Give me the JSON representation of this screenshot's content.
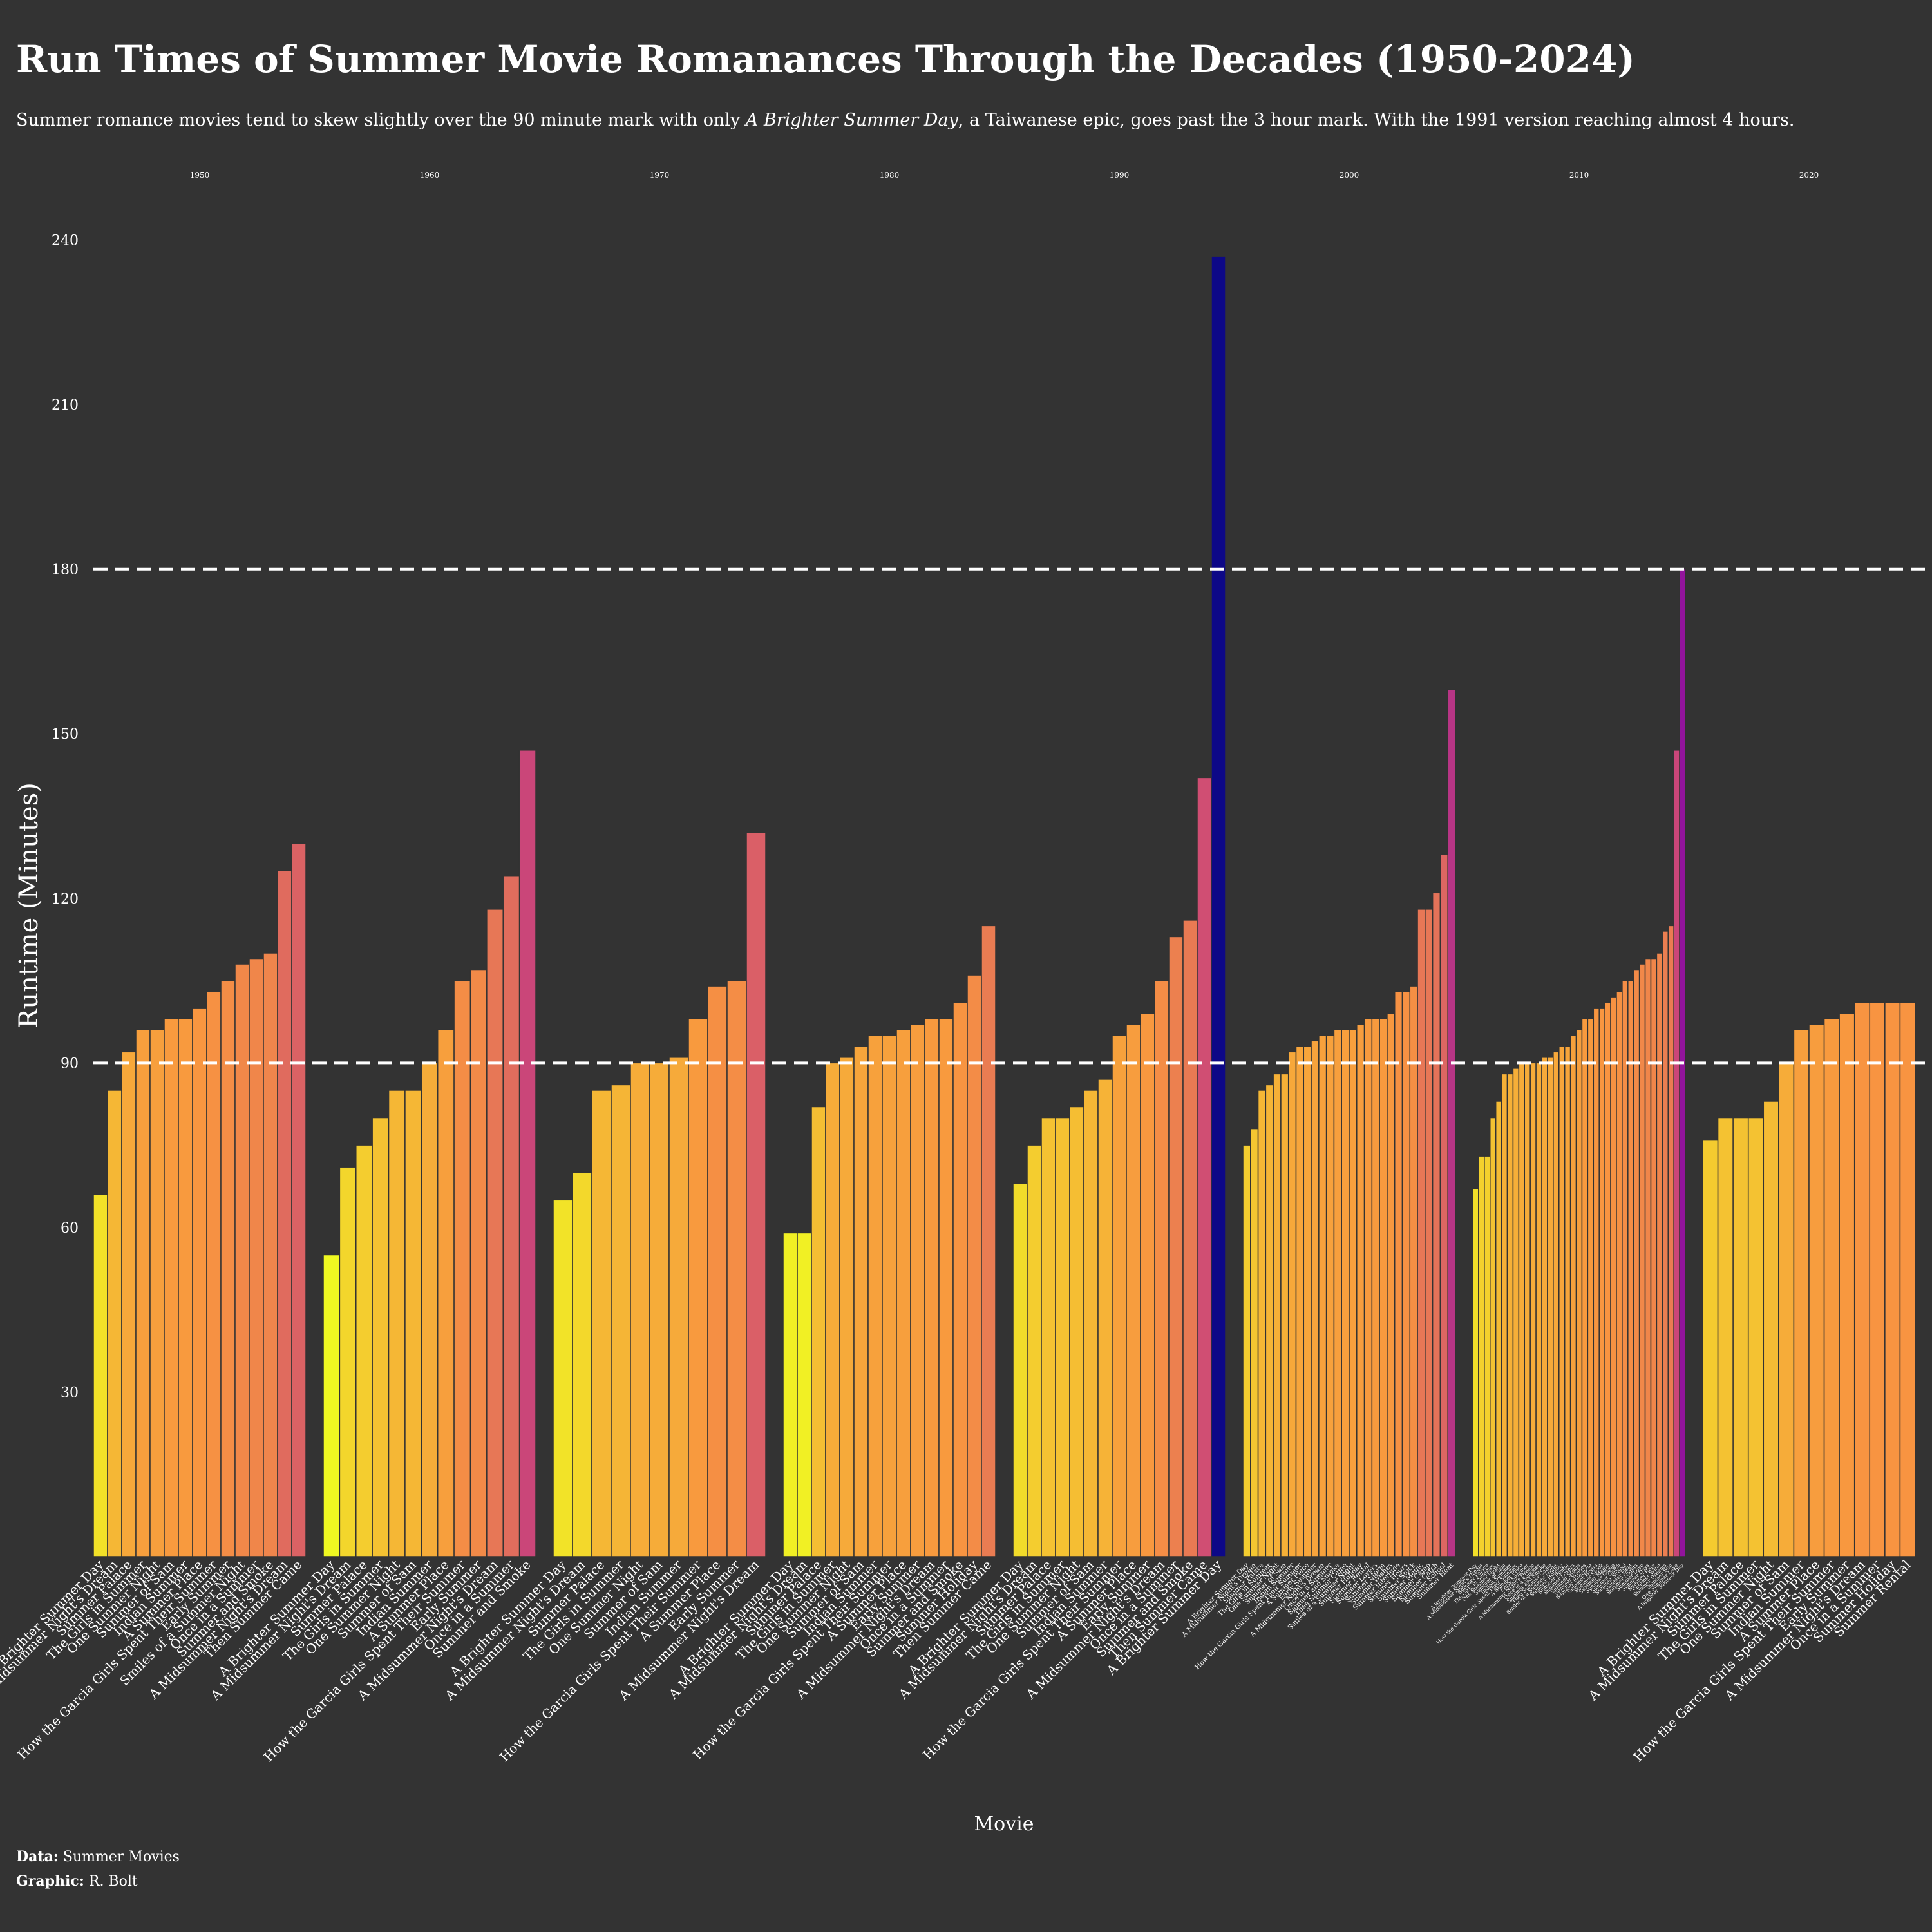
{
  "chart_data": {
    "type": "bar",
    "title": "Run Times of Summer Movie Romanances Through the Decades (1950-2024)",
    "subtitle": [
      "Summer romance movies tend to skew slightly over the 90 minute mark with only ",
      "A Brighter Summer Day",
      ", a Taiwanese epic, goes past the 3 hour mark. With the 1991 version reaching almost 4 hours."
    ],
    "y_label": "Runtime (Minutes)",
    "x_label": "Movie",
    "ylim": [
      0,
      245
    ],
    "yticks": [
      30,
      60,
      90,
      120,
      150,
      180,
      210,
      240
    ],
    "reference_lines": [
      90,
      180
    ],
    "colors": [
      "#f0f921",
      "#f89540",
      "#cc4778",
      "#7e03a8",
      "#0d0887"
    ],
    "facets": [
      {
        "title": "1950",
        "categories": [
          "A Brighter Summer Day",
          "A Midsummer Night's Dream",
          "Summer Palace",
          "The Girls in Summer",
          "One Summer Night",
          "Summer of Sam",
          "Indian Summer",
          "A Summer Place",
          "How the Garcia Girls Spent Their Summer",
          "Early Summer",
          "Smiles of a Summer Night",
          "Once in a Summer",
          "Summer and Smoke",
          "A Midsummer Night's Dream",
          "Then Summer Came"
        ],
        "values": [
          66,
          85,
          92,
          96,
          96,
          98,
          98,
          100,
          103,
          105,
          108,
          109,
          110,
          125,
          130
        ]
      },
      {
        "title": "1960",
        "categories": [
          "A Brighter Summer Day",
          "A Midsummer Night's Dream",
          "Summer Palace",
          "The Girls in Summer",
          "One Summer Night",
          "Summer of Sam",
          "Indian Summer",
          "A Summer Place",
          "How the Garcia Girls Spent Their Summer",
          "Early Summer",
          "A Midsummer Night's Dream",
          "Once in a Summer",
          "Summer and Smoke"
        ],
        "values": [
          55,
          71,
          75,
          80,
          85,
          85,
          90,
          96,
          105,
          107,
          118,
          124,
          147
        ]
      },
      {
        "title": "1970",
        "categories": [
          "A Brighter Summer Day",
          "A Midsummer Night's Dream",
          "Summer Palace",
          "The Girls in Summer",
          "One Summer Night",
          "Summer of Sam",
          "Indian Summer",
          "How the Garcia Girls Spent Their Summer",
          "A Summer Place",
          "Early Summer",
          "A Midsummer Night's Dream"
        ],
        "values": [
          65,
          70,
          85,
          86,
          90,
          90,
          91,
          98,
          104,
          105,
          132
        ]
      },
      {
        "title": "1980",
        "categories": [
          "A Brighter Summer Day",
          "A Midsummer Night's Dream",
          "Summer Palace",
          "The Girls in Summer",
          "One Summer Night",
          "Summer of Sam",
          "Indian Summer",
          "How the Garcia Girls Spent Their Summer",
          "A Summer Place",
          "Early Summer",
          "A Midsummer Night's Dream",
          "Once in a Summer",
          "Summer and Smoke",
          "Summer Holiday",
          "Then Summer Came"
        ],
        "values": [
          59,
          59,
          82,
          90,
          91,
          93,
          95,
          95,
          96,
          97,
          98,
          98,
          101,
          106,
          115
        ]
      },
      {
        "title": "1990",
        "categories": [
          "A Brighter Summer Day",
          "A Midsummer Night's Dream",
          "Summer Palace",
          "The Girls in Summer",
          "One Summer Night",
          "Summer of Sam",
          "Indian Summer",
          "How the Garcia Girls Spent Their Summer",
          "A Summer Place",
          "Early Summer",
          "A Midsummer Night's Dream",
          "Once in a Summer",
          "Summer and Smoke",
          "Then Summer Came",
          "A Brighter Summer Day"
        ],
        "values": [
          68,
          75,
          80,
          80,
          82,
          85,
          87,
          95,
          97,
          99,
          105,
          113,
          116,
          142,
          237
        ]
      },
      {
        "title": "2000",
        "categories": [
          "A Brighter Summer Day",
          "A Midsummer Night's Dream",
          "Summer Palace",
          "The Girls in Summer",
          "One Summer Night",
          "Summer of Sam",
          "Indian Summer",
          "How the Garcia Girls Spent Their Summer",
          "A Summer Place",
          "Early Summer",
          "A Midsummer Night's Dream",
          "Once in a Summer",
          "Summer and Smoke",
          "Then Summer Came",
          "Smiles of a Summer Night",
          "Summer Holiday",
          "Summer Rental",
          "Summer Lovers",
          "Summer Storm",
          "Summer Wishes",
          "Summer Interlude",
          "Summer Hours",
          "Summer Stock",
          "Summer Magic",
          "Summer Camp",
          "Summer Catch",
          "Summer School",
          "Summer Heat"
        ],
        "values": [
          75,
          78,
          85,
          86,
          88,
          88,
          92,
          93,
          93,
          94,
          95,
          95,
          96,
          96,
          96,
          97,
          98,
          98,
          98,
          99,
          103,
          103,
          104,
          118,
          118,
          121,
          128,
          158
        ]
      },
      {
        "title": "2010",
        "categories": [
          "A Brighter Summer Day",
          "A Midsummer Night's Dream",
          "Summer Palace",
          "The Girls in Summer",
          "One Summer Night",
          "Summer of Sam",
          "Indian Summer",
          "How the Garcia Girls Spent Their Summer",
          "A Summer Place",
          "Early Summer",
          "A Midsummer Night's Dream",
          "Once in a Summer",
          "Summer and Smoke",
          "Then Summer Came",
          "Smiles of a Summer Night",
          "Summer Holiday",
          "Summer Rental",
          "Summer Lovers",
          "Summer Storm",
          "Summer Wishes",
          "Summer Interlude",
          "Summer Hours",
          "Summer Stock",
          "Summer Magic",
          "Summer Camp",
          "Summer Catch",
          "Summer School",
          "Summer Heat",
          "Summer Nights",
          "Summer Love",
          "Summer Days",
          "Summer Rain",
          "Summer Wind",
          "Summer Dreams",
          "Summer Sun",
          "One Summer Love",
          "A Brighter Summer Day"
        ],
        "values": [
          67,
          73,
          73,
          80,
          83,
          88,
          88,
          89,
          90,
          90,
          90,
          90,
          91,
          91,
          92,
          93,
          93,
          95,
          96,
          98,
          98,
          100,
          100,
          101,
          102,
          103,
          105,
          105,
          107,
          108,
          109,
          109,
          110,
          114,
          115,
          147,
          180
        ]
      },
      {
        "title": "2020",
        "categories": [
          "A Brighter Summer Day",
          "A Midsummer Night's Dream",
          "Summer Palace",
          "The Girls in Summer",
          "One Summer Night",
          "Summer of Sam",
          "Indian Summer",
          "A Summer Place",
          "How the Garcia Girls Spent Their Summer",
          "Early Summer",
          "A Midsummer Night's Dream",
          "Once in a Summer",
          "Summer Holiday",
          "Summer Rental"
        ],
        "values": [
          76,
          80,
          80,
          80,
          83,
          90,
          96,
          97,
          98,
          99,
          101,
          101,
          101,
          101
        ]
      }
    ],
    "caption": [
      {
        "label": "Data:",
        "text": "Summer Movies"
      },
      {
        "label": "Graphic:",
        "text": "R. Bolt"
      }
    ]
  }
}
